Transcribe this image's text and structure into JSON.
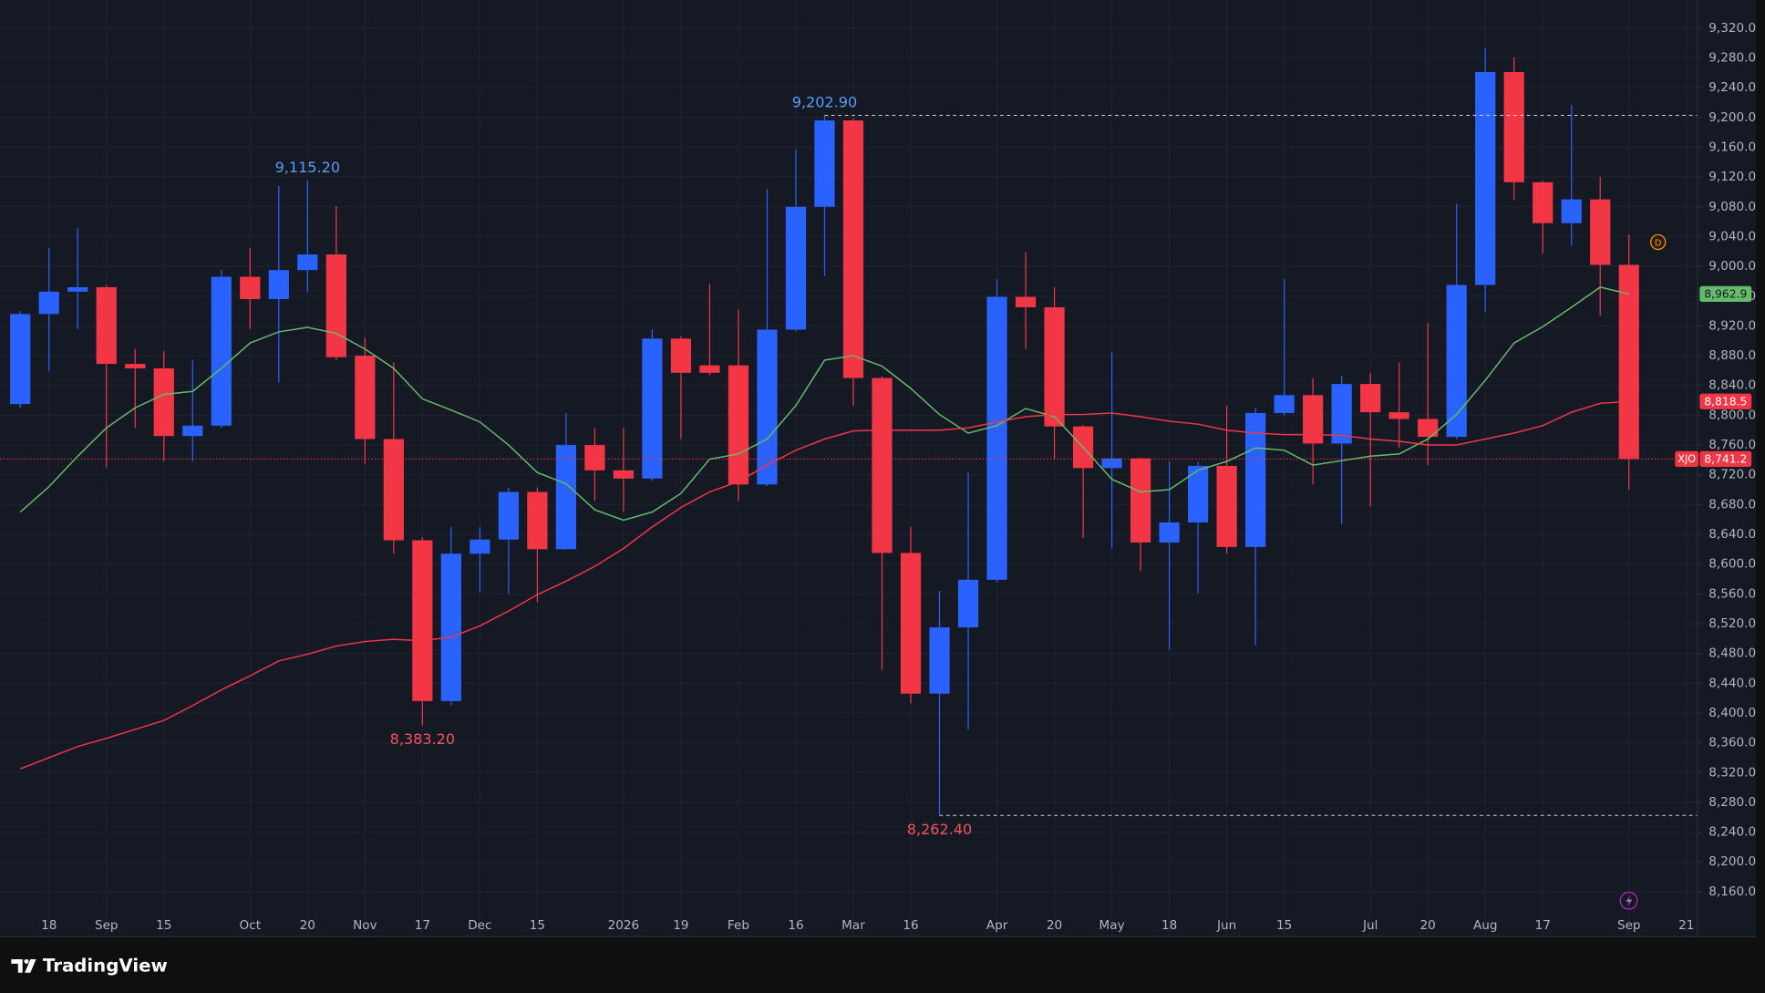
{
  "chart_data": {
    "type": "candlestick",
    "categories": [
      null,
      "18",
      null,
      "Sep",
      null,
      "15",
      null,
      null,
      "Oct",
      null,
      "20",
      null,
      "Nov",
      null,
      "17",
      null,
      "Dec",
      null,
      "15",
      null,
      null,
      "2026",
      null,
      "19",
      null,
      "Feb",
      null,
      "16",
      null,
      "Mar",
      null,
      "16",
      null,
      null,
      "Apr",
      null,
      "20",
      null,
      "May",
      null,
      "18",
      null,
      "Jun",
      null,
      "15",
      null,
      null,
      "Jul",
      null,
      "20",
      null,
      "Aug",
      null,
      "17",
      null,
      null,
      "Sep",
      null,
      "21"
    ],
    "series": [
      {
        "name": "XJO",
        "up_color": "#2962ff",
        "down_color": "#f23645",
        "open": [
          8815,
          8936,
          8966,
          8972,
          8869,
          8863,
          8772,
          8786,
          8986,
          8956,
          8995,
          9016,
          8880,
          8768,
          8632,
          8416,
          8614,
          8633,
          8697,
          8620,
          8760,
          8726,
          8715,
          8903,
          8867,
          8867,
          8707,
          8915,
          9080,
          9196,
          8850,
          8615,
          8426,
          8515,
          8579,
          8959,
          8945,
          8785,
          8729,
          8742,
          8629,
          8656,
          8732,
          8623,
          8803,
          8827,
          8762,
          8842,
          8804,
          8795,
          8771,
          8975,
          9261,
          9113,
          9058,
          9090,
          9002,
          null,
          null
        ],
        "high": [
          8940,
          9025,
          9052,
          8975,
          8889,
          8886,
          8874,
          8995,
          9025,
          9108,
          9115.2,
          9081,
          8904,
          8871,
          8636,
          8650,
          8650,
          8703,
          8703,
          8803,
          8783,
          8783,
          8915,
          8906,
          8977,
          8942,
          9104,
          9157,
          9202.9,
          9199,
          8852,
          8650,
          8564,
          8723,
          8983,
          9019,
          8972,
          8787,
          8884,
          8743,
          8738,
          8738,
          8813,
          8810,
          8983,
          8850,
          8853,
          8857,
          8871,
          8924,
          9084,
          9294,
          9281,
          9115,
          9217,
          9120,
          9043,
          null,
          null
        ],
        "low": [
          8810,
          8859,
          8916,
          8730,
          8783,
          8738,
          8738,
          8783,
          8916,
          8844,
          8965,
          8874,
          8735,
          8614,
          8383.2,
          8410,
          8562,
          8560,
          8549,
          8620,
          8685,
          8670,
          8712,
          8768,
          8854,
          8685,
          8705,
          8913,
          8987,
          8813,
          8458,
          8413,
          8262.4,
          8378,
          8576,
          8889,
          8741,
          8635,
          8621,
          8591,
          8485,
          8561,
          8614,
          8491,
          8800,
          8707,
          8654,
          8677,
          8756,
          8733,
          8768,
          8939,
          9089,
          9017,
          9028,
          8934,
          8700,
          null,
          null
        ],
        "close": [
          8936,
          8966,
          8972,
          8869,
          8863,
          8772,
          8786,
          8986,
          8956,
          8995,
          9016,
          8878,
          8768,
          8632,
          8416,
          8614,
          8633,
          8697,
          8620,
          8760,
          8726,
          8715,
          8903,
          8857,
          8857,
          8707,
          8915,
          9080,
          9196,
          8850,
          8615,
          8426,
          8515,
          8579,
          8959,
          8945,
          8785,
          8729,
          8742,
          8629,
          8656,
          8732,
          8623,
          8803,
          8827,
          8762,
          8842,
          8804,
          8795,
          8771,
          8975,
          9261,
          9113,
          9058,
          9090,
          9002,
          8741.2,
          null,
          null
        ],
        "high_labels": [
          null,
          null,
          null,
          null,
          null,
          null,
          null,
          null,
          null,
          null,
          "9,115.20",
          null,
          null,
          null,
          null,
          null,
          null,
          null,
          null,
          null,
          null,
          null,
          null,
          null,
          null,
          null,
          null,
          null,
          "9,202.90",
          null,
          null,
          null,
          null,
          null,
          null,
          null,
          null,
          null,
          null,
          null,
          null,
          null,
          null,
          null,
          null,
          null,
          null,
          null,
          null,
          null,
          null,
          null,
          null,
          null,
          null,
          null,
          null,
          null,
          null
        ],
        "low_labels": [
          null,
          null,
          null,
          null,
          null,
          null,
          null,
          null,
          null,
          null,
          null,
          null,
          null,
          null,
          "8,383.20",
          null,
          null,
          null,
          null,
          null,
          null,
          null,
          null,
          null,
          null,
          null,
          null,
          null,
          null,
          null,
          null,
          null,
          "8,262.40",
          null,
          null,
          null,
          null,
          null,
          null,
          null,
          null,
          null,
          null,
          null,
          null,
          null,
          null,
          null,
          null,
          null,
          null,
          null,
          null,
          null,
          null,
          null,
          null,
          null,
          null
        ],
        "high_label_color": "#5b9cf6",
        "low_label_color": "#f7525f",
        "last_label": "8,741.2"
      },
      {
        "color": "#66bb6a",
        "values": [
          8670,
          8704,
          8745,
          8783,
          8810,
          8828,
          8832,
          8863,
          8897,
          8912,
          8918,
          8910,
          8889,
          8863,
          8822,
          8807,
          8791,
          8760,
          8723,
          8708,
          8673,
          8659,
          8670,
          8695,
          8741,
          8748,
          8768,
          8813,
          8874,
          8880,
          8866,
          8836,
          8801,
          8776,
          8786,
          8809,
          8798,
          8757,
          8714,
          8697,
          8700,
          8726,
          8738,
          8756,
          8753,
          8733,
          8739,
          8745,
          8748,
          8768,
          8801,
          8847,
          8897,
          8919,
          8945,
          8972,
          8962.9,
          null,
          null
        ],
        "last_label": "8,962.9"
      },
      {
        "color": "#f23645",
        "values": [
          8325,
          8340,
          8355,
          8366,
          8378,
          8390,
          8410,
          8431,
          8450,
          8470,
          8479,
          8490,
          8496,
          8499,
          8497,
          8502,
          8517,
          8537,
          8559,
          8577,
          8597,
          8621,
          8650,
          8676,
          8697,
          8711,
          8733,
          8753,
          8768,
          8779,
          8780,
          8780,
          8780,
          8783,
          8791,
          8798,
          8801,
          8801,
          8803,
          8798,
          8792,
          8788,
          8780,
          8776,
          8774,
          8774,
          8773,
          8768,
          8765,
          8760,
          8760,
          8768,
          8776,
          8786,
          8804,
          8816,
          8818.5,
          null,
          null
        ],
        "last_label": "8,818.5"
      }
    ],
    "ylim": [
      8099.5,
      9357.8
    ],
    "yticks": [
      {
        "value": 8160,
        "label": "8,160.0"
      },
      {
        "value": 8200,
        "label": "8,200.0"
      },
      {
        "value": 8240,
        "label": "8,240.0"
      },
      {
        "value": 8280,
        "label": "8,280.0"
      },
      {
        "value": 8320,
        "label": "8,320.0"
      },
      {
        "value": 8360,
        "label": "8,360.0"
      },
      {
        "value": 8400,
        "label": "8,400.0"
      },
      {
        "value": 8440,
        "label": "8,440.0"
      },
      {
        "value": 8480,
        "label": "8,480.0"
      },
      {
        "value": 8520,
        "label": "8,520.0"
      },
      {
        "value": 8560,
        "label": "8,560.0"
      },
      {
        "value": 8600,
        "label": "8,600.0"
      },
      {
        "value": 8640,
        "label": "8,640.0"
      },
      {
        "value": 8680,
        "label": "8,680.0"
      },
      {
        "value": 8720,
        "label": "8,720.0"
      },
      {
        "value": 8760,
        "label": "8,760.0"
      },
      {
        "value": 8800,
        "label": "8,800.0"
      },
      {
        "value": 8840,
        "label": "8,840.0"
      },
      {
        "value": 8880,
        "label": "8,880.0"
      },
      {
        "value": 8920,
        "label": "8,920.0"
      },
      {
        "value": 8960,
        "label": "8,960.0"
      },
      {
        "value": 9000,
        "label": "9,000.0"
      },
      {
        "value": 9040,
        "label": "9,040.0"
      },
      {
        "value": 9080,
        "label": "9,080.0"
      },
      {
        "value": 9120,
        "label": "9,120.0"
      },
      {
        "value": 9160,
        "label": "9,160.0"
      },
      {
        "value": 9200,
        "label": "9,200.0"
      },
      {
        "value": 9240,
        "label": "9,240.0"
      },
      {
        "value": 9280,
        "label": "9,280.0"
      },
      {
        "value": 9320,
        "label": "9,320.0"
      }
    ],
    "grid": true,
    "event_label": "D"
  },
  "footer": {
    "brand": "TradingView"
  }
}
